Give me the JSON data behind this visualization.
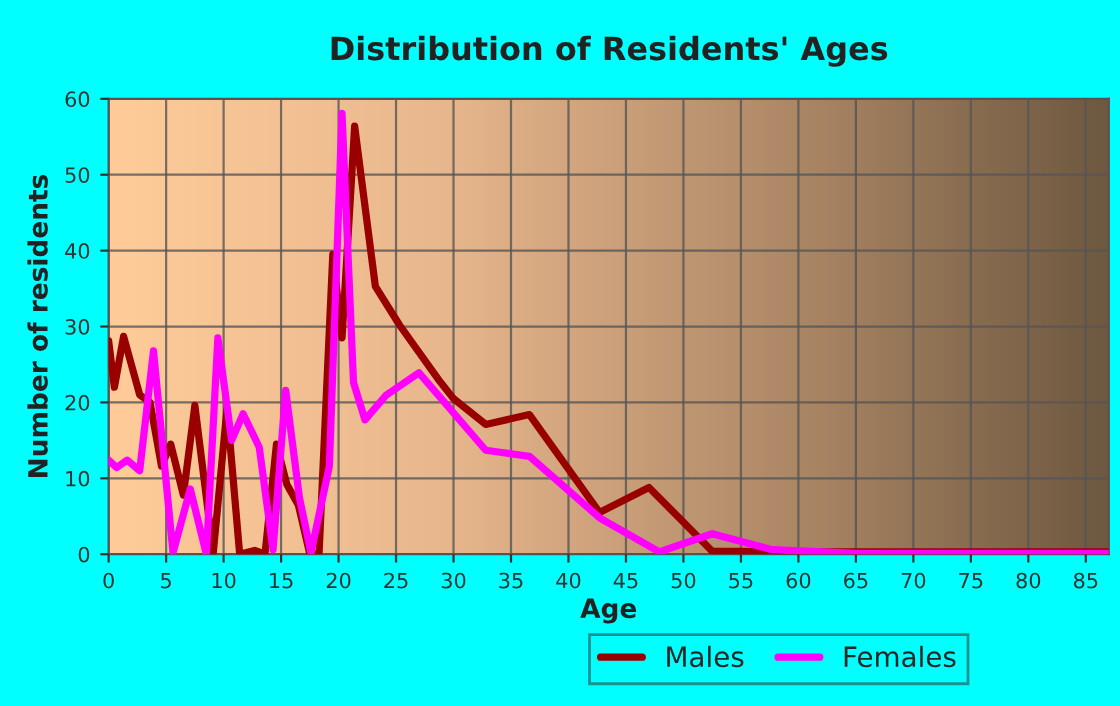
{
  "chart_data": {
    "type": "line",
    "title": "Distribution of Residents' Ages",
    "xlabel": "Age",
    "ylabel": "Number of residents",
    "xlim": [
      0,
      87
    ],
    "xticks": [
      0,
      5,
      10,
      15,
      20,
      25,
      30,
      35,
      40,
      45,
      50,
      55,
      60,
      65,
      70,
      75,
      80,
      85
    ],
    "ylim": [
      0,
      60
    ],
    "yticks": [
      0,
      10,
      20,
      30,
      40,
      50,
      60
    ],
    "grid": true,
    "legend": "bottom",
    "marker": "none",
    "line_style": "solid",
    "series": [
      {
        "name": "Males",
        "color": "#990000",
        "x": [
          0,
          0.5,
          1.3,
          2.7,
          3.6,
          4.6,
          5.4,
          6.5,
          7.5,
          9.1,
          10.3,
          11.4,
          12.7,
          13.6,
          14.6,
          15.5,
          16.5,
          17.5,
          18.3,
          19.5,
          20.3,
          21.4,
          23.2,
          25.3,
          28.7,
          30,
          32.8,
          36.6,
          42.7,
          47,
          52.5,
          60,
          70,
          80,
          87
        ],
        "values": [
          28.1,
          22,
          28.7,
          21,
          20,
          11.6,
          14.5,
          7.8,
          19.6,
          0.2,
          19.2,
          0,
          0.5,
          0,
          14.5,
          9.2,
          6.5,
          0,
          0,
          39.5,
          28.5,
          56.4,
          35.3,
          30.2,
          23,
          20.5,
          17.1,
          18.4,
          5.5,
          8.8,
          0.4,
          0.3,
          0.3,
          0.3,
          0.3
        ]
      },
      {
        "name": "Females",
        "color": "#ff00ff",
        "x": [
          0,
          0.7,
          1.6,
          2.7,
          3.9,
          5.6,
          7.1,
          8.5,
          9.5,
          10.7,
          11.7,
          13.1,
          14.3,
          15.4,
          16.6,
          17.6,
          19.2,
          20.3,
          21.3,
          22.3,
          24.1,
          27,
          32.8,
          36.6,
          42.7,
          47.9,
          52.5,
          57.7,
          65,
          75,
          87
        ],
        "values": [
          12.4,
          11.4,
          12.4,
          11,
          26.8,
          0.2,
          8.6,
          0,
          28.5,
          15,
          18.5,
          14.1,
          0.6,
          21.6,
          7.4,
          0.2,
          11.6,
          58.1,
          22.6,
          17.7,
          20.9,
          23.9,
          13.7,
          12.9,
          4.8,
          0.3,
          2.7,
          0.6,
          0.1,
          0.1,
          0.1
        ]
      }
    ]
  }
}
